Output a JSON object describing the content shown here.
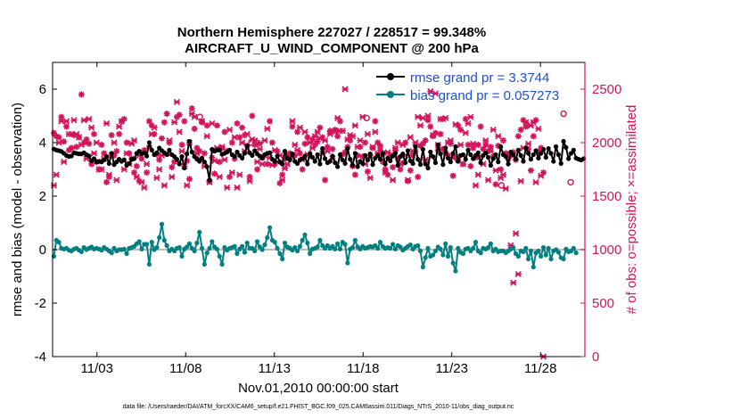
{
  "chart_data": {
    "type": "line",
    "title_line1": "Northern Hemisphere 227027 / 228517 = 99.348%",
    "title_line2": "AIRCRAFT_U_WIND_COMPONENT @ 200 hPa",
    "xlabel": "Nov.01,2010 00:00:00 start",
    "ylabel_left": "rmse and bias (model - observation)",
    "ylabel_right": "# of obs: o=possible; ×=assimilated",
    "footnote": "data file: /Users/raeder/DAI/ATM_forcXX/CAM6_setup/f.e21.FHIST_BGC.f09_025.CAM6assim.011/Diags_NTrS_2010-11/obs_diag_output.nc",
    "xlim": [
      0.5,
      30.5
    ],
    "ylim_left": [
      -4,
      7
    ],
    "ylim_right": [
      0,
      2750
    ],
    "xticks": [
      {
        "day": 3,
        "label": "11/03"
      },
      {
        "day": 8,
        "label": "11/08"
      },
      {
        "day": 13,
        "label": "11/13"
      },
      {
        "day": 18,
        "label": "11/18"
      },
      {
        "day": 23,
        "label": "11/23"
      },
      {
        "day": 28,
        "label": "11/28"
      }
    ],
    "yticks_left": [
      {
        "v": 6,
        "label": "6"
      },
      {
        "v": 4,
        "label": "4"
      },
      {
        "v": 2,
        "label": "2"
      },
      {
        "v": 0,
        "label": "0"
      },
      {
        "v": -2,
        "label": "-2"
      },
      {
        "v": -4,
        "label": "-4"
      }
    ],
    "yticks_right": [
      {
        "v": 2500,
        "label": "2500"
      },
      {
        "v": 2000,
        "label": "2000"
      },
      {
        "v": 1500,
        "label": "1500"
      },
      {
        "v": 1000,
        "label": "1000"
      },
      {
        "v": 500,
        "label": "500"
      },
      {
        "v": 0,
        "label": "0"
      }
    ],
    "legend": [
      {
        "name": "rmse grand pr = 3.3744",
        "color": "#000000"
      },
      {
        "name": "bias grand pr = 0.057273",
        "color": "#008080"
      }
    ],
    "legend_text_color": "#1f4fd1",
    "colors": {
      "rmse": "#000000",
      "bias": "#008080",
      "obs": "#d4145a",
      "zero_line": "#bbbbbb"
    },
    "series": [
      {
        "name": "rmse",
        "values": [
          3.76,
          3.72,
          3.7,
          3.67,
          3.6,
          3.52,
          3.48,
          3.5,
          3.62,
          3.6,
          3.58,
          3.58,
          3.62,
          3.55,
          3.5,
          3.32,
          3.4,
          3.28,
          3.3,
          3.28,
          3.35,
          3.48,
          3.22,
          3.6,
          3.18,
          3.28,
          3.38,
          3.3,
          3.36,
          3.15,
          3.22,
          3.38,
          3.4,
          3.6,
          3.68,
          3.58,
          3.62,
          3.5,
          4.0,
          3.72,
          3.55,
          3.62,
          3.8,
          3.7,
          3.62,
          3.55,
          3.72,
          3.55,
          3.48,
          3.38,
          3.2,
          3.48,
          3.05,
          3.58,
          4.05,
          3.65,
          3.48,
          3.38,
          3.3,
          3.42,
          3.28,
          3.1,
          2.6,
          3.75,
          3.68,
          3.72,
          3.72,
          3.56,
          3.6,
          3.65,
          3.72,
          3.55,
          3.48,
          3.65,
          3.52,
          3.42,
          3.6,
          3.88,
          3.62,
          3.52,
          3.7,
          3.58,
          3.5,
          3.42,
          3.55,
          3.6,
          3.62,
          3.38,
          3.3,
          3.5,
          3.28,
          3.2,
          3.68,
          3.42,
          3.35,
          3.58,
          3.3,
          3.22,
          3.35,
          3.4,
          3.5,
          3.2,
          3.6,
          3.45,
          3.3,
          3.55,
          3.2,
          3.78,
          3.4,
          3.25,
          3.3,
          3.5,
          3.25,
          3.1,
          3.55,
          3.35,
          3.22,
          3.78,
          3.38,
          3.15,
          3.6,
          3.1,
          3.3,
          3.22,
          3.52,
          3.35,
          3.58,
          3.18,
          3.42,
          3.52,
          3.38,
          3.6,
          3.2,
          3.42,
          3.32,
          3.5,
          3.6,
          3.15,
          3.48,
          3.58,
          3.25,
          3.7,
          3.32,
          3.22,
          3.85,
          3.38,
          3.18,
          3.75,
          3.2,
          3.05,
          3.65,
          3.48,
          3.25,
          3.92,
          3.58,
          3.18,
          3.8,
          3.42,
          3.28,
          3.6,
          3.85,
          3.3,
          3.52,
          3.55,
          3.38,
          3.72,
          3.55,
          3.4,
          3.52,
          3.62,
          3.25,
          3.52,
          3.62,
          3.45,
          3.15,
          3.4,
          3.55,
          3.28,
          3.85,
          3.55,
          3.48,
          3.2,
          3.65,
          3.55,
          3.38,
          3.72,
          3.52,
          3.3,
          3.8,
          3.6,
          3.38,
          3.55,
          3.7,
          3.42,
          3.6,
          3.75,
          3.45,
          3.78,
          3.6,
          3.3,
          3.85,
          3.55,
          3.22,
          4.05,
          3.82,
          3.4,
          3.6,
          3.72,
          3.42,
          3.38,
          3.35,
          3.4
        ]
      },
      {
        "name": "bias",
        "values": [
          -0.25,
          0.35,
          0.28,
          0.05,
          0.02,
          0.05,
          -0.02,
          -0.05,
          0.02,
          0.05,
          -0.02,
          -0.08,
          0.08,
          0.0,
          0.05,
          0.1,
          0.02,
          0.05,
          0.02,
          -0.02,
          0.08,
          0.02,
          -0.05,
          -0.12,
          0.05,
          -0.05,
          0.0,
          0.0,
          0.02,
          -0.15,
          0.05,
          0.08,
          0.12,
          0.22,
          0.3,
          0.02,
          0.2,
          0.2,
          -0.55,
          0.28,
          0.0,
          0.08,
          0.45,
          0.95,
          0.35,
          0.15,
          -0.05,
          0.02,
          -0.05,
          0.05,
          0.08,
          -0.25,
          0.02,
          0.1,
          0.22,
          0.05,
          -0.05,
          0.25,
          0.65,
          0.05,
          -0.55,
          -0.12,
          0.05,
          0.3,
          0.1,
          0.02,
          -0.25,
          -0.55,
          0.08,
          -0.02,
          0.05,
          0.08,
          0.12,
          -0.15,
          0.02,
          0.12,
          -0.1,
          0.25,
          0.05,
          0.05,
          -0.05,
          0.3,
          0.1,
          0.0,
          0.18,
          0.45,
          0.82,
          0.35,
          0.28,
          0.05,
          -0.15,
          -0.35,
          0.25,
          0.1,
          0.05,
          -0.02,
          0.08,
          -0.05,
          0.12,
          0.35,
          0.55,
          0.25,
          -0.15,
          0.02,
          0.05,
          0.1,
          0.35,
          0.15,
          0.05,
          0.15,
          0.05,
          0.12,
          0.02,
          0.22,
          0.02,
          0.28,
          0.2,
          -0.5,
          0.02,
          0.08,
          0.35,
          0.1,
          0.02,
          0.12,
          0.05,
          0.08,
          0.12,
          0.1,
          0.15,
          0.05,
          0.28,
          0.12,
          0.05,
          0.08,
          0.05,
          0.2,
          0.02,
          0.15,
          0.1,
          -0.02,
          0.05,
          0.12,
          0.18,
          0.02,
          0.12,
          0.15,
          -0.05,
          -0.65,
          -0.3,
          0.05,
          -0.25,
          -0.2,
          -0.05,
          0.1,
          0.02,
          -0.2,
          0.22,
          -0.25,
          0.08,
          -0.5,
          -0.8,
          0.05,
          -0.1,
          -0.15,
          0.02,
          0.05,
          -0.05,
          0.05,
          0.28,
          -0.05,
          -0.12,
          0.05,
          0.02,
          0.08,
          0.22,
          -0.05,
          0.02,
          -0.08,
          -0.05,
          -0.05,
          -0.12,
          -0.05,
          0.02,
          0.08,
          -0.15,
          -0.25,
          -0.05,
          -0.08,
          0.05,
          -0.35,
          -0.05,
          -0.65,
          -0.12,
          -0.05,
          -0.25,
          0.08,
          -0.2,
          0.05,
          -0.35,
          -0.05,
          0.0,
          -0.1,
          -0.3,
          -0.35,
          0.02,
          -0.08,
          -0.05,
          0.05,
          -0.12
        ]
      },
      {
        "name": "obs_assimilated",
        "values": [
          1600,
          1700,
          2000,
          2200,
          1820,
          2200,
          2080,
          2080,
          2210,
          2080,
          2050,
          1980,
          2210,
          1850,
          2220,
          2140,
          1900,
          2000,
          1750,
          1750,
          1850,
          2180,
          1700,
          1880,
          2000,
          1650,
          2150,
          2200,
          1750,
          1900,
          1800,
          1990,
          2020,
          1680,
          1880,
          1630,
          1580,
          1800,
          1950,
          2080,
          2140,
          1670,
          1750,
          1880,
          1600,
          1900,
          2020,
          1680,
          2190,
          2380,
          2100,
          1920,
          1780,
          1600,
          2000,
          2270,
          2240,
          1900,
          1850,
          2200,
          1780,
          2060,
          1630,
          2180,
          1830,
          1950,
          1680,
          1960,
          1840,
          1580,
          2120,
          1720,
          2050,
          1580,
          1700,
          2000,
          1920,
          2080,
          1640,
          2030,
          2020,
          1820,
          1940,
          1800,
          2020,
          2130,
          1860,
          1790,
          1930,
          1820,
          1880,
          1650,
          1760,
          1800,
          1870,
          2200,
          1980,
          1930,
          2140,
          1840,
          2100,
          1890,
          2000,
          1950,
          2060,
          2100,
          2040,
          1900,
          2020,
          1920,
          2080,
          1850,
          2100,
          2230,
          2110,
          2110,
          2500,
          2030,
          2070,
          2060,
          2160,
          1960,
          2020,
          2240,
          1800,
          2080,
          1670,
          1960,
          2100,
          1900,
          1930,
          1900,
          1720,
          1910,
          1880,
          1650,
          1950,
          2000,
          1800,
          1980,
          1880,
          1650,
          2050,
          1920,
          2000,
          2240,
          2160,
          2230,
          1840,
          2250,
          2480,
          2070,
          2460,
          1980,
          2220,
          2220,
          2230,
          2000,
          2020,
          1860,
          2170,
          1840,
          1980,
          1800,
          2090,
          2180,
          2240,
          1990,
          1600,
          1700,
          1870,
          1800,
          2020,
          1650,
          1920,
          2120,
          1740,
          2060,
          1670,
          1700,
          1570,
          1900,
          1040,
          690,
          1150,
          770,
          1640,
          1950,
          2190,
          1990,
          2160,
          2190,
          1630,
          2130,
          1690,
          0
        ]
      },
      {
        "name": "obs_possible",
        "values": [
          2090,
          2060,
          2050,
          2240,
          2010,
          2150,
          1930,
          1950,
          2070,
          1960,
          2050,
          2450,
          2000,
          2030,
          1990,
          1800,
          2080,
          1820,
          1750,
          1980,
          1900,
          1630,
          1680,
          2070,
          1880,
          1920,
          2080,
          2200,
          2220,
          2000,
          1900,
          1850,
          1720,
          1780,
          1640,
          1850,
          1930,
          1720,
          2200,
          2160,
          2080,
          1890,
          1840,
          2040,
          2190,
          2270,
          2000,
          1770,
          1820,
          2240,
          2260,
          1980,
          2200,
          1830,
          1660,
          2320,
          2130,
          1950,
          1920,
          2190,
          1900,
          2160,
          1640,
          1860,
          1710,
          2160,
          1820,
          1950,
          2100,
          1920,
          1680,
          2000,
          1850,
          2180,
          2050,
          2140,
          2070,
          1970,
          1680,
          2250,
          1980,
          1750,
          1990,
          1860,
          1880,
          1800,
          2200,
          2000,
          1800,
          1920,
          1620,
          1700,
          1850,
          1880,
          1900,
          2150,
          1880,
          2100,
          1900,
          1750,
          1990,
          2050,
          1880,
          2030,
          1980,
          2010,
          2140,
          2050,
          1650,
          1960,
          2110,
          1940,
          2120,
          2060,
          2200,
          1890,
          1910,
          1960,
          2020,
          1780,
          1700,
          1880,
          1960,
          1870,
          2000,
          1730,
          1880,
          1950,
          2200,
          2000,
          1970,
          1820,
          1750,
          1700,
          1880,
          1770,
          1930,
          1850,
          1750,
          1810,
          2000,
          1640,
          1740,
          1880,
          1920,
          1680,
          1970,
          1990,
          2020,
          2210,
          2150,
          2060,
          2090,
          1930,
          2080,
          1940,
          1910,
          1880,
          1990,
          1690,
          1860,
          2160,
          2120,
          1800,
          2220,
          1980,
          1780,
          1950,
          1860,
          1980,
          2150,
          1940,
          1980,
          1920,
          1960,
          1870,
          1610,
          1970,
          1750,
          2020,
          1900,
          1850,
          1880,
          1910,
          1840,
          2060,
          2120,
          2210,
          2150,
          1940,
          1740,
          2060,
          2210,
          1910,
          1950,
          1720
        ]
      }
    ],
    "possible_markers": [
      {
        "day": 8.8,
        "v": 2240
      },
      {
        "day": 11.7,
        "v": 2000
      },
      {
        "day": 12.0,
        "v": 2000
      },
      {
        "day": 18.2,
        "v": 2230
      },
      {
        "day": 25.8,
        "v": 1600
      },
      {
        "day": 29.3,
        "v": 2270
      },
      {
        "day": 29.7,
        "v": 1630
      }
    ]
  }
}
